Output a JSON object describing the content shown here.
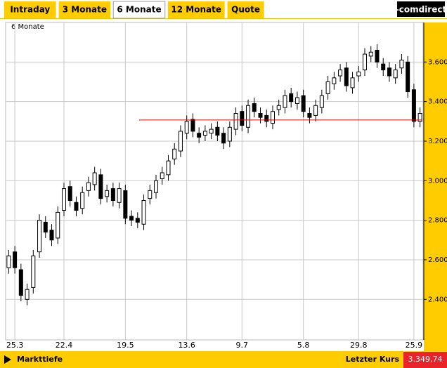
{
  "tabs": [
    "Intraday",
    "3 Monate",
    "6 Monate",
    "12 Monate",
    "Quote"
  ],
  "selected_tab": 2,
  "logo": "-comdirect",
  "footer": {
    "left": "Markttiefe",
    "label": "Letzter Kurs",
    "price": "3.349,74"
  },
  "chart_data": {
    "type": "candlestick",
    "title": "6 Monate",
    "categories": [
      null,
      "25.3",
      null,
      null,
      null,
      null,
      null,
      null,
      null,
      "22.4",
      null,
      null,
      null,
      null,
      null,
      null,
      null,
      null,
      null,
      "19.5",
      null,
      null,
      null,
      null,
      null,
      null,
      null,
      null,
      null,
      "13.6",
      null,
      null,
      null,
      null,
      null,
      null,
      null,
      null,
      "9.7",
      null,
      null,
      null,
      null,
      null,
      null,
      null,
      null,
      null,
      "5.8",
      null,
      null,
      null,
      null,
      null,
      null,
      null,
      null,
      "29.8",
      null,
      null,
      null,
      null,
      null,
      null,
      null,
      null,
      "25.9",
      null
    ],
    "open": [
      2560,
      2640,
      2550,
      2400,
      2460,
      2640,
      2790,
      2750,
      2710,
      2850,
      2970,
      2890,
      2860,
      2950,
      2980,
      3030,
      2920,
      2960,
      2890,
      2950,
      2820,
      2810,
      2780,
      2910,
      2940,
      3010,
      3030,
      3110,
      3150,
      3240,
      3310,
      3240,
      3230,
      3240,
      3270,
      3240,
      3200,
      3260,
      3350,
      3270,
      3390,
      3340,
      3330,
      3290,
      3360,
      3370,
      3440,
      3390,
      3430,
      3340,
      3330,
      3370,
      3440,
      3490,
      3530,
      3570,
      3470,
      3530,
      3560,
      3630,
      3660,
      3590,
      3570,
      3520,
      3570,
      3600,
      3460,
      3300
    ],
    "high": [
      2650,
      2670,
      2580,
      2480,
      2650,
      2830,
      2820,
      2780,
      2870,
      2990,
      3000,
      2920,
      2970,
      3020,
      3070,
      3060,
      2980,
      2990,
      2990,
      2980,
      2850,
      2840,
      2930,
      2980,
      3030,
      3070,
      3130,
      3190,
      3280,
      3330,
      3340,
      3270,
      3280,
      3290,
      3300,
      3270,
      3300,
      3370,
      3380,
      3410,
      3420,
      3370,
      3360,
      3380,
      3410,
      3460,
      3470,
      3450,
      3460,
      3370,
      3410,
      3460,
      3530,
      3550,
      3590,
      3600,
      3550,
      3580,
      3670,
      3680,
      3690,
      3620,
      3600,
      3590,
      3640,
      3630,
      3490,
      3370
    ],
    "low": [
      2530,
      2530,
      2390,
      2370,
      2430,
      2610,
      2710,
      2670,
      2680,
      2820,
      2870,
      2820,
      2830,
      2920,
      2950,
      2880,
      2890,
      2870,
      2860,
      2780,
      2770,
      2760,
      2750,
      2880,
      2910,
      2980,
      3000,
      3080,
      3120,
      3210,
      3220,
      3190,
      3200,
      3210,
      3200,
      3160,
      3170,
      3230,
      3250,
      3240,
      3320,
      3290,
      3270,
      3260,
      3330,
      3340,
      3370,
      3360,
      3320,
      3290,
      3300,
      3340,
      3410,
      3460,
      3500,
      3450,
      3440,
      3500,
      3530,
      3600,
      3570,
      3530,
      3500,
      3490,
      3540,
      3420,
      3270,
      3270
    ],
    "close": [
      2620,
      2560,
      2420,
      2450,
      2620,
      2800,
      2740,
      2700,
      2840,
      2960,
      2900,
      2850,
      2940,
      2990,
      3040,
      2910,
      2950,
      2900,
      2960,
      2810,
      2800,
      2790,
      2900,
      2950,
      3000,
      3040,
      3100,
      3160,
      3250,
      3300,
      3250,
      3220,
      3250,
      3260,
      3230,
      3190,
      3270,
      3340,
      3280,
      3380,
      3350,
      3320,
      3300,
      3350,
      3380,
      3430,
      3400,
      3420,
      3350,
      3320,
      3380,
      3430,
      3500,
      3520,
      3560,
      3480,
      3520,
      3550,
      3640,
      3650,
      3600,
      3560,
      3530,
      3560,
      3610,
      3450,
      3300,
      3340
    ],
    "up_color": "#ffffff",
    "down_color": "#000000",
    "reference_line": 3307,
    "reference_color": "#e00000",
    "ylim": [
      2195,
      3800
    ],
    "yticks": [
      {
        "value": 2400,
        "label": "2.400"
      },
      {
        "value": 2600,
        "label": "2.600"
      },
      {
        "value": 2800,
        "label": "2.800"
      },
      {
        "value": 3000,
        "label": "3.000"
      },
      {
        "value": 3200,
        "label": "3.200"
      },
      {
        "value": 3400,
        "label": "3.400"
      },
      {
        "value": 3600,
        "label": "3.600"
      }
    ],
    "grid": true
  }
}
